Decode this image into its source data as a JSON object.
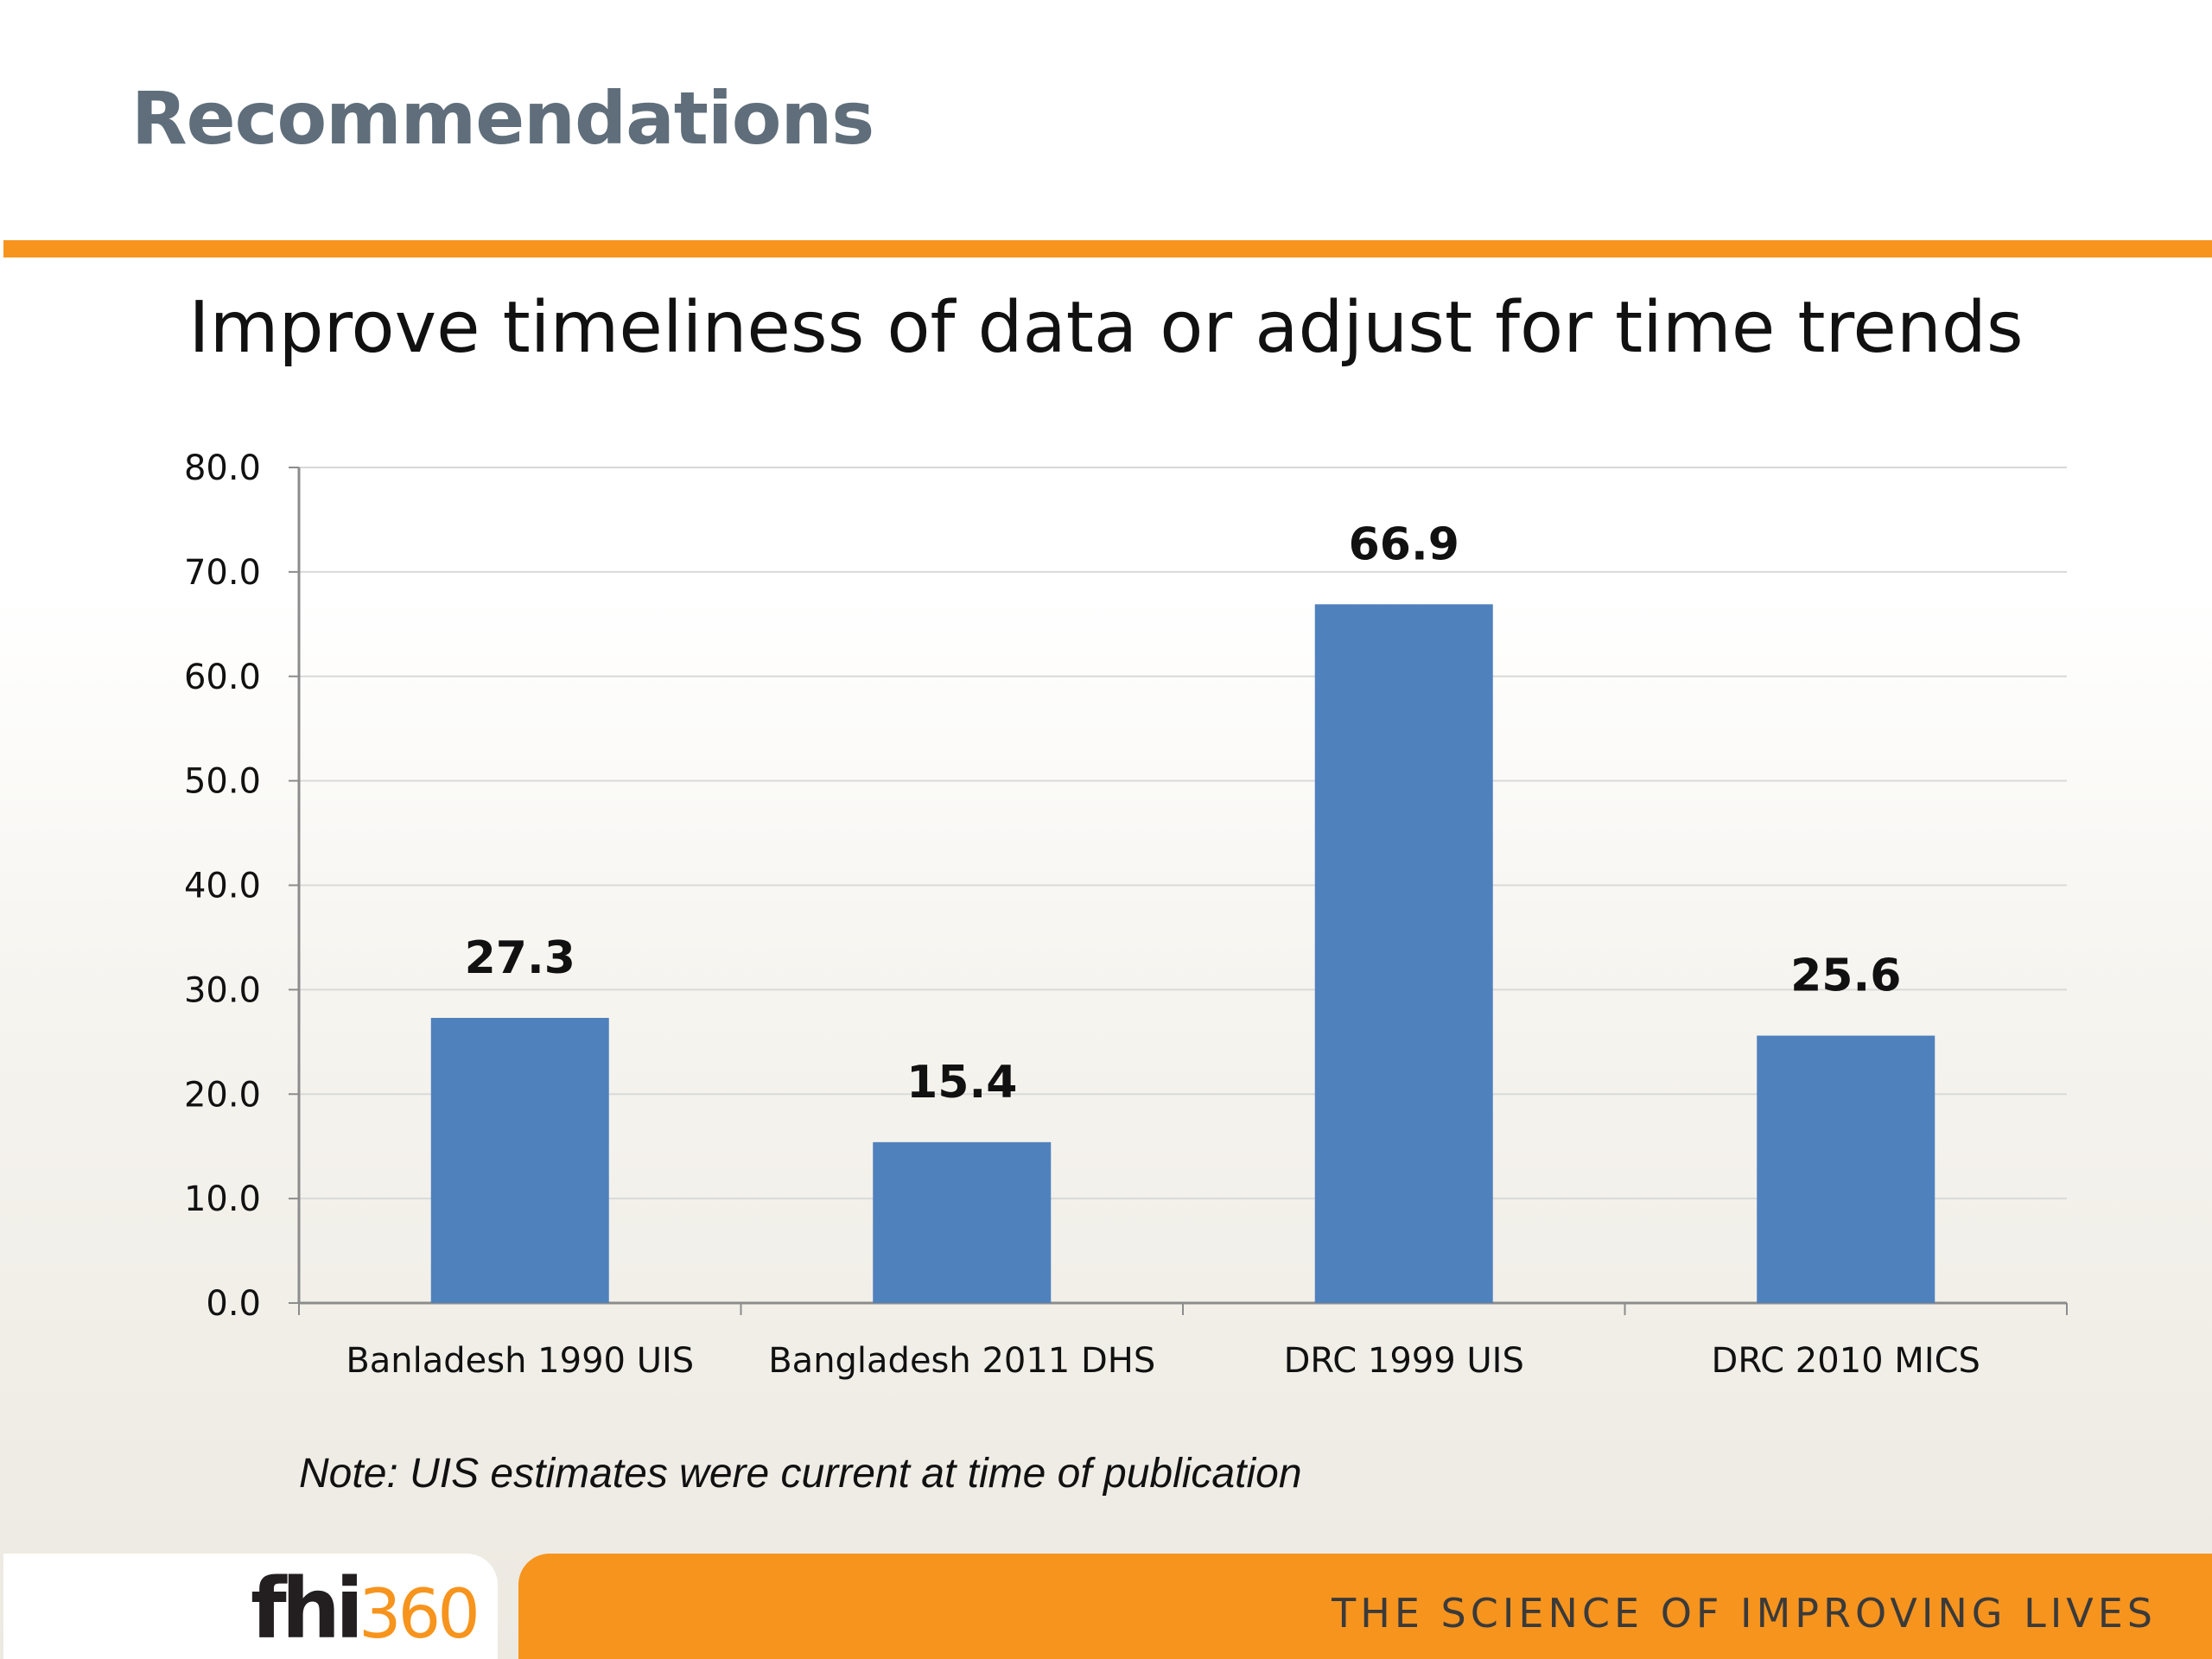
{
  "slide": {
    "title": "Recommendations",
    "heading": "Improve timeliness of data or adjust for time trends",
    "note": "Note: UIS estimates were current at time of publication"
  },
  "footer": {
    "logo_text": "fhi",
    "logo_number": "360",
    "tagline": "THE SCIENCE OF IMPROVING LIVES"
  },
  "colors": {
    "accent": "#f7941d",
    "bar": "#4f81bd",
    "title": "#5f6e7a"
  },
  "chart_data": {
    "type": "bar",
    "categories": [
      "Banladesh 1990 UIS",
      "Bangladesh 2011 DHS",
      "DRC 1999 UIS",
      "DRC 2010 MICS"
    ],
    "values": [
      27.3,
      15.4,
      66.9,
      25.6
    ],
    "value_labels": [
      "27.3",
      "15.4",
      "66.9",
      "25.6"
    ],
    "ylim": [
      0,
      80
    ],
    "yticks": [
      "0.0",
      "10.0",
      "20.0",
      "30.0",
      "40.0",
      "50.0",
      "60.0",
      "70.0",
      "80.0"
    ],
    "grid": true,
    "legend": "none"
  }
}
